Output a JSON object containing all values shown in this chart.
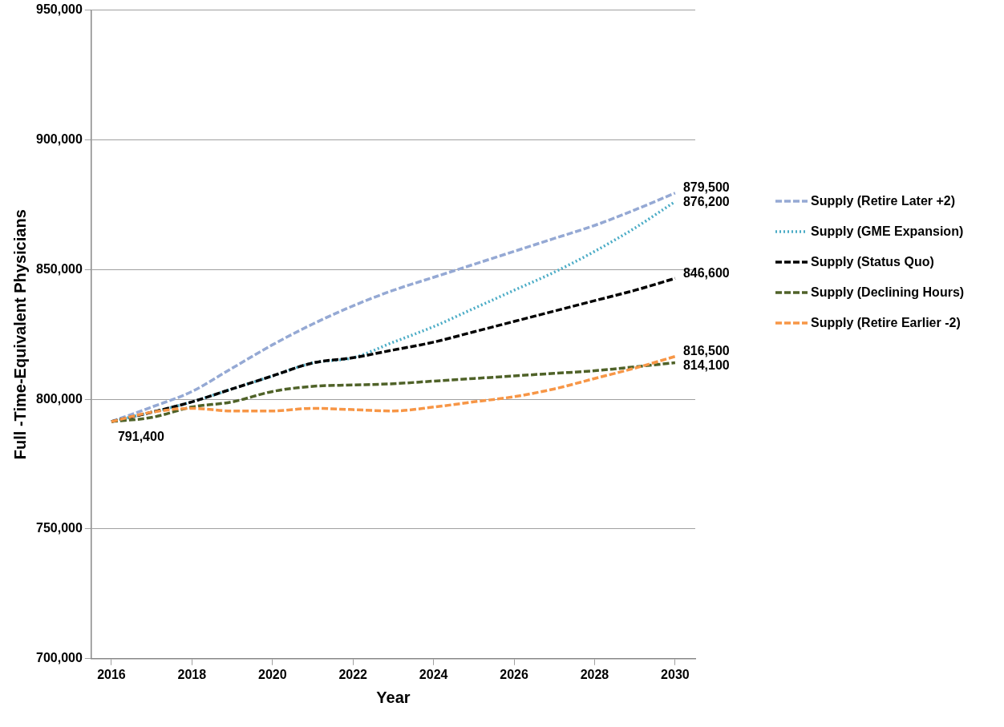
{
  "chart_data": {
    "type": "line",
    "xlabel": "Year",
    "ylabel": "Full -Time-Equivalent Physicians",
    "x": [
      2016,
      2017,
      2018,
      2019,
      2020,
      2021,
      2022,
      2023,
      2024,
      2025,
      2026,
      2027,
      2028,
      2029,
      2030
    ],
    "xlim": [
      2015.5,
      2030.5
    ],
    "xticks": [
      2016,
      2018,
      2020,
      2022,
      2024,
      2026,
      2028,
      2030
    ],
    "ylim": [
      700000,
      950000
    ],
    "yticks": [
      {
        "value": 700000,
        "label": "700,000"
      },
      {
        "value": 750000,
        "label": "750,000"
      },
      {
        "value": 800000,
        "label": "800,000"
      },
      {
        "value": 850000,
        "label": "850,000"
      },
      {
        "value": 900000,
        "label": "900,000"
      },
      {
        "value": 950000,
        "label": "950,000"
      }
    ],
    "grid": "y",
    "legend": "right",
    "marker": "none",
    "series": [
      {
        "name": "Supply (Retire Later +2)",
        "color": "#95a9d4",
        "line_style": "dashed",
        "values": [
          791400,
          797000,
          803000,
          812000,
          821000,
          829000,
          836000,
          842000,
          847000,
          852000,
          857000,
          862000,
          867000,
          873000,
          879500
        ],
        "value_labels": [
          null,
          null,
          null,
          null,
          null,
          null,
          null,
          null,
          null,
          null,
          null,
          null,
          null,
          null,
          "879,500"
        ]
      },
      {
        "name": "Supply (GME Expansion)",
        "color": "#4bacc6",
        "line_style": "dotted",
        "values": [
          791400,
          795000,
          799000,
          804000,
          809000,
          814000,
          816000,
          822000,
          828000,
          835000,
          842000,
          849000,
          857000,
          866000,
          876200
        ],
        "value_labels": [
          null,
          null,
          null,
          null,
          null,
          null,
          null,
          null,
          null,
          null,
          null,
          null,
          null,
          null,
          "876,200"
        ]
      },
      {
        "name": "Supply (Status Quo)",
        "color": "#000000",
        "line_style": "dashed",
        "values": [
          791400,
          795000,
          799000,
          804000,
          809000,
          814000,
          816000,
          819000,
          822000,
          826000,
          830000,
          834000,
          838000,
          842000,
          846600
        ],
        "value_labels": [
          "791,400",
          null,
          null,
          null,
          null,
          null,
          null,
          null,
          null,
          null,
          null,
          null,
          null,
          null,
          "846,600"
        ]
      },
      {
        "name": "Supply (Declining Hours)",
        "color": "#4f6228",
        "line_style": "dashed",
        "values": [
          791400,
          793000,
          797000,
          799000,
          803000,
          805000,
          805500,
          806000,
          807000,
          808000,
          809000,
          810000,
          811000,
          812500,
          814100
        ],
        "value_labels": [
          null,
          null,
          null,
          null,
          null,
          null,
          null,
          null,
          null,
          null,
          null,
          null,
          null,
          null,
          "814,100"
        ]
      },
      {
        "name": "Supply (Retire Earlier -2)",
        "color": "#f79646",
        "line_style": "dashed",
        "values": [
          791400,
          795000,
          796500,
          795500,
          795500,
          796500,
          796000,
          795500,
          797000,
          799000,
          801000,
          804000,
          808000,
          812000,
          816500
        ],
        "value_labels": [
          null,
          null,
          null,
          null,
          null,
          null,
          null,
          null,
          null,
          null,
          null,
          null,
          null,
          null,
          "816,500"
        ]
      }
    ]
  }
}
